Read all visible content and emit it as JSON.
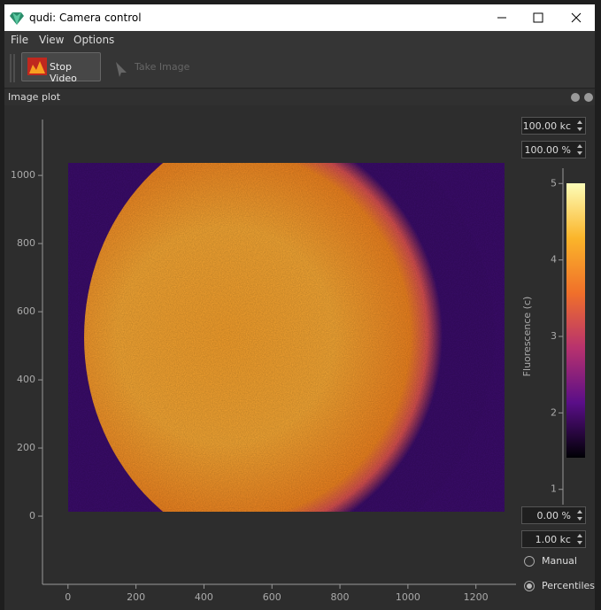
{
  "window": {
    "title": "qudi: Camera control"
  },
  "menu": [
    "File",
    "View",
    "Options"
  ],
  "toolbar": [
    "Stop Video",
    "Take Image"
  ],
  "dock": {
    "title": "Image plot"
  },
  "plot": {
    "xlim": [
      -75,
      1318
    ],
    "ylim": [
      -200,
      1164
    ],
    "xticks": [
      0,
      200,
      400,
      600,
      800,
      1000,
      1200
    ],
    "yticks": [
      0,
      200,
      400,
      600,
      800,
      1000
    ]
  },
  "colorbar": {
    "label": "Fluorescence (c)",
    "lim": [
      0.8,
      5.2
    ],
    "ticks": [
      1,
      2,
      3,
      4,
      5
    ]
  },
  "controls": {
    "max_value": "100.00 kc",
    "max_percent": "100.00 %",
    "min_percent": "0.00 %",
    "min_value": "1.00 kc",
    "modes": [
      "Manual",
      "Percentiles"
    ],
    "selected": "Percentiles"
  }
}
